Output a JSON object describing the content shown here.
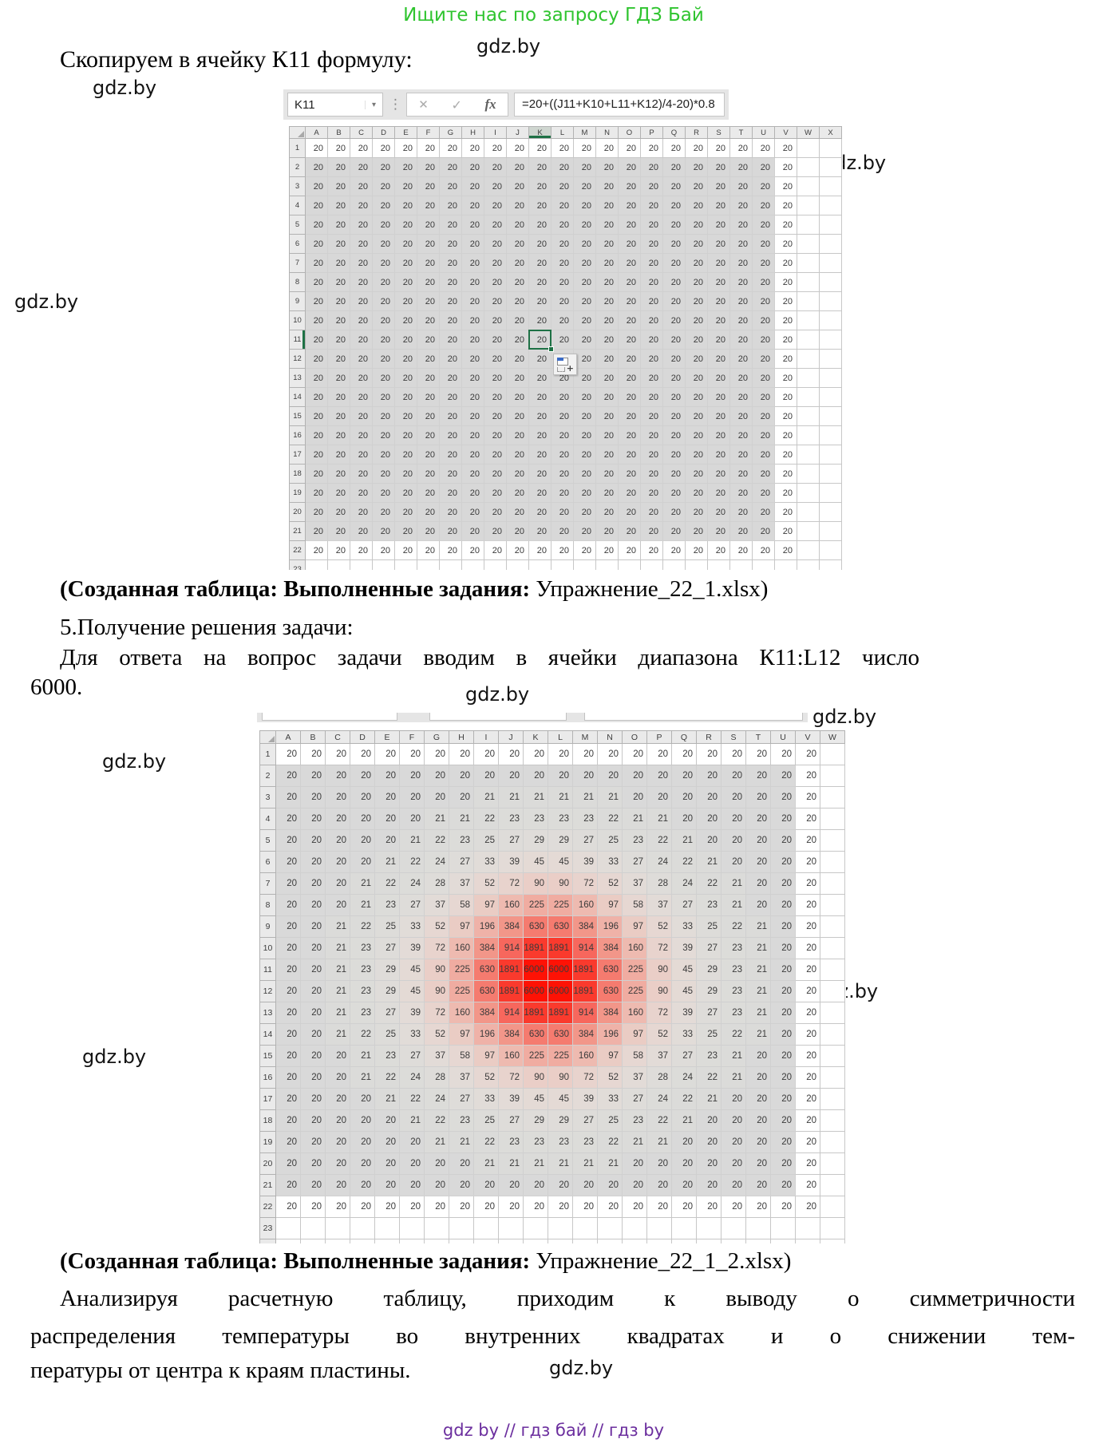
{
  "page": {
    "top_banner": "Ищите нас по запросу ГДЗ Бай",
    "banner_color": "#2FC42F",
    "title_line": "Скопируем в ячейку К11 формулу:",
    "caption1_bold": "(Созданная таблица: Выполненные задания:",
    "caption1_file": " Упражнение_22_1.xlsx)",
    "step5": "5.Получение решения задачи:",
    "para1_line1": "Для ответа на вопрос задачи вводим в ячейки диапазона К11:L12 число",
    "para1_line2": "6000.",
    "caption2_bold": "(Созданная таблица: Выполненные задания:",
    "caption2_file": " Упражнение_22_1_2.xlsx)",
    "para2_line1": "Анализируя расчетную таблицу, приходим к выводу о симметричности",
    "para2_line2": "распределения температуры во внутренних квадратах и о снижении тем-",
    "para2_line3": "пературы от центра к краям пластины.",
    "watermark": "gdz.by",
    "footer": "gdz by  //  гдз бай  //  гдз by",
    "footer_color": "#6B2E9E"
  },
  "sheet1": {
    "name": "sheet1-grid",
    "name_box": "K11",
    "fx_label": "fx",
    "formula": "=20+((J11+K10+L11+K12)/4-20)*0.8",
    "columns": [
      "A",
      "B",
      "C",
      "D",
      "E",
      "F",
      "G",
      "H",
      "I",
      "J",
      "K",
      "L",
      "M",
      "N",
      "O",
      "P",
      "Q",
      "R",
      "S",
      "T",
      "U",
      "V",
      "W",
      "X"
    ],
    "value_columns": 22,
    "data_rows": 22,
    "total_rows": 23,
    "uniform_value": "20",
    "gray": {
      "row_start": 2,
      "row_end": 21,
      "col_end": 20
    },
    "selected": {
      "col": "K",
      "row": 11
    }
  },
  "sheet2": {
    "name": "sheet2-grid",
    "columns": [
      "A",
      "B",
      "C",
      "D",
      "E",
      "F",
      "G",
      "H",
      "I",
      "J",
      "K",
      "L",
      "M",
      "N",
      "O",
      "P",
      "Q",
      "R",
      "S",
      "T",
      "U",
      "V",
      "W"
    ],
    "value_columns": 22,
    "data_rows": 22,
    "total_rows": 24,
    "gray": {
      "row_start": 2,
      "row_end": 21,
      "col_end": 20
    },
    "rows": [
      [
        20,
        20,
        20,
        20,
        20,
        20,
        20,
        20,
        20,
        20,
        20,
        20,
        20,
        20,
        20,
        20,
        20,
        20,
        20,
        20,
        20,
        20
      ],
      [
        20,
        20,
        20,
        20,
        20,
        20,
        20,
        20,
        20,
        20,
        20,
        20,
        20,
        20,
        20,
        20,
        20,
        20,
        20,
        20,
        20,
        20
      ],
      [
        20,
        20,
        20,
        20,
        20,
        20,
        20,
        20,
        21,
        21,
        21,
        21,
        21,
        21,
        20,
        20,
        20,
        20,
        20,
        20,
        20,
        20
      ],
      [
        20,
        20,
        20,
        20,
        20,
        20,
        21,
        21,
        22,
        23,
        23,
        23,
        23,
        22,
        21,
        21,
        20,
        20,
        20,
        20,
        20,
        20
      ],
      [
        20,
        20,
        20,
        20,
        20,
        21,
        22,
        23,
        25,
        27,
        29,
        29,
        27,
        25,
        23,
        22,
        21,
        20,
        20,
        20,
        20,
        20
      ],
      [
        20,
        20,
        20,
        20,
        21,
        22,
        24,
        27,
        33,
        39,
        45,
        45,
        39,
        33,
        27,
        24,
        22,
        21,
        20,
        20,
        20,
        20
      ],
      [
        20,
        20,
        20,
        21,
        22,
        24,
        28,
        37,
        52,
        72,
        90,
        90,
        72,
        52,
        37,
        28,
        24,
        22,
        21,
        20,
        20,
        20
      ],
      [
        20,
        20,
        20,
        21,
        23,
        27,
        37,
        58,
        97,
        160,
        225,
        225,
        160,
        97,
        58,
        37,
        27,
        23,
        21,
        20,
        20,
        20
      ],
      [
        20,
        20,
        21,
        22,
        25,
        33,
        52,
        97,
        196,
        384,
        630,
        630,
        384,
        196,
        97,
        52,
        33,
        25,
        22,
        21,
        20,
        20
      ],
      [
        20,
        20,
        21,
        23,
        27,
        39,
        72,
        160,
        384,
        914,
        1891,
        1891,
        914,
        384,
        160,
        72,
        39,
        27,
        23,
        21,
        20,
        20
      ],
      [
        20,
        20,
        21,
        23,
        29,
        45,
        90,
        225,
        630,
        1891,
        6000,
        6000,
        1891,
        630,
        225,
        90,
        45,
        29,
        23,
        21,
        20,
        20
      ],
      [
        20,
        20,
        21,
        23,
        29,
        45,
        90,
        225,
        630,
        1891,
        6000,
        6000,
        1891,
        630,
        225,
        90,
        45,
        29,
        23,
        21,
        20,
        20
      ],
      [
        20,
        20,
        21,
        23,
        27,
        39,
        72,
        160,
        384,
        914,
        1891,
        1891,
        914,
        384,
        160,
        72,
        39,
        27,
        23,
        21,
        20,
        20
      ],
      [
        20,
        20,
        21,
        22,
        25,
        33,
        52,
        97,
        196,
        384,
        630,
        630,
        384,
        196,
        97,
        52,
        33,
        25,
        22,
        21,
        20,
        20
      ],
      [
        20,
        20,
        20,
        21,
        23,
        27,
        37,
        58,
        97,
        160,
        225,
        225,
        160,
        97,
        58,
        37,
        27,
        23,
        21,
        20,
        20,
        20
      ],
      [
        20,
        20,
        20,
        21,
        22,
        24,
        28,
        37,
        52,
        72,
        90,
        90,
        72,
        52,
        37,
        28,
        24,
        22,
        21,
        20,
        20,
        20
      ],
      [
        20,
        20,
        20,
        20,
        21,
        22,
        24,
        27,
        33,
        39,
        45,
        45,
        39,
        33,
        27,
        24,
        22,
        21,
        20,
        20,
        20,
        20
      ],
      [
        20,
        20,
        20,
        20,
        20,
        21,
        22,
        23,
        25,
        27,
        29,
        29,
        27,
        25,
        23,
        22,
        21,
        20,
        20,
        20,
        20,
        20
      ],
      [
        20,
        20,
        20,
        20,
        20,
        20,
        21,
        21,
        22,
        23,
        23,
        23,
        23,
        22,
        21,
        21,
        20,
        20,
        20,
        20,
        20,
        20
      ],
      [
        20,
        20,
        20,
        20,
        20,
        20,
        20,
        20,
        21,
        21,
        21,
        21,
        21,
        21,
        20,
        20,
        20,
        20,
        20,
        20,
        20,
        20
      ],
      [
        20,
        20,
        20,
        20,
        20,
        20,
        20,
        20,
        20,
        20,
        20,
        20,
        20,
        20,
        20,
        20,
        20,
        20,
        20,
        20,
        20,
        20
      ],
      [
        20,
        20,
        20,
        20,
        20,
        20,
        20,
        20,
        20,
        20,
        20,
        20,
        20,
        20,
        20,
        20,
        20,
        20,
        20,
        20,
        20,
        20
      ]
    ],
    "heat": [
      [
        6000,
        "#FE1205"
      ],
      [
        1891,
        "#FA3A2D"
      ],
      [
        914,
        "#F7675D"
      ],
      [
        630,
        "#F57B6F"
      ],
      [
        384,
        "#F29689"
      ],
      [
        225,
        "#F0ACA1"
      ],
      [
        196,
        "#EFB2A8"
      ],
      [
        160,
        "#EEBAB0"
      ],
      [
        97,
        "#EACCC4"
      ],
      [
        90,
        "#EACEC7"
      ],
      [
        72,
        "#E8D3CD"
      ],
      [
        52,
        "#E6D7D2"
      ],
      [
        45,
        "#E4DAD5"
      ],
      [
        39,
        "#E3DBD7"
      ],
      [
        37,
        "#E2DBD7"
      ],
      [
        33,
        "#E1DCD8"
      ],
      [
        29,
        "#DFDCD9"
      ],
      [
        27,
        "#DEDCD9"
      ],
      [
        25,
        "#DDDCD9"
      ],
      [
        23,
        "#DCDCD9"
      ],
      [
        21,
        "#DBDBD9"
      ],
      [
        0,
        "#D9D9D9"
      ]
    ]
  }
}
